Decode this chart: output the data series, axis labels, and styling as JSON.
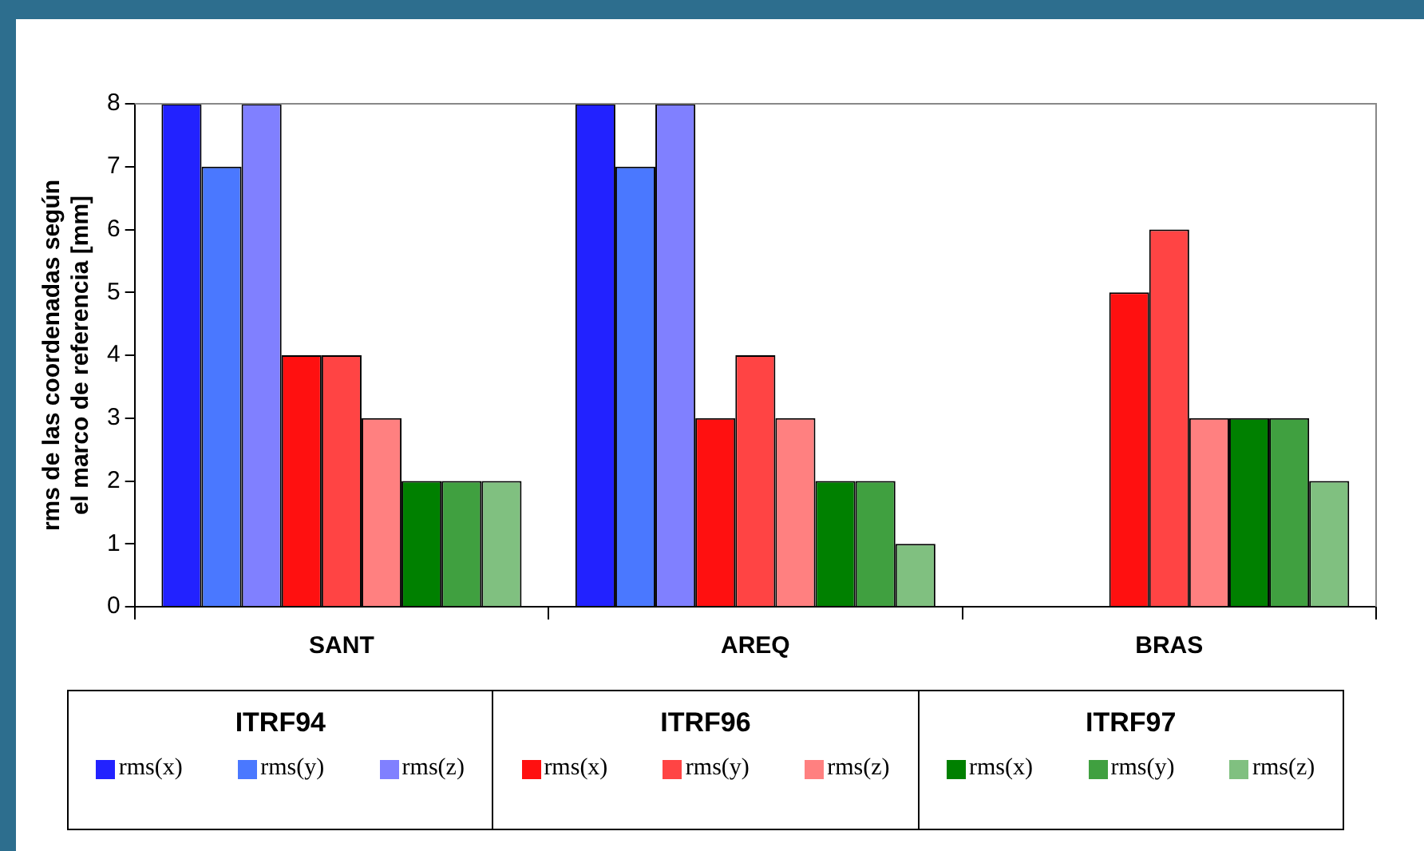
{
  "chart_data": {
    "type": "bar",
    "ylabel": "rms de las coordenadas según\nel marco de referencia [mm]",
    "categories": [
      "SANT",
      "AREQ",
      "BRAS"
    ],
    "series": [
      {
        "name": "rms(x)",
        "color": "#2222ff",
        "values": [
          8,
          8,
          null
        ]
      },
      {
        "name": "rms(y)",
        "color": "#4a78ff",
        "values": [
          7,
          7,
          null
        ]
      },
      {
        "name": "rms(z)",
        "color": "#8080ff",
        "values": [
          8,
          8,
          null
        ]
      },
      {
        "name": "rms(x)",
        "color": "#ff1010",
        "values": [
          4,
          3,
          5
        ]
      },
      {
        "name": "rms(y)",
        "color": "#ff4444",
        "values": [
          4,
          4,
          6
        ]
      },
      {
        "name": "rms(z)",
        "color": "#ff8080",
        "values": [
          3,
          3,
          3
        ]
      },
      {
        "name": "rms(x)",
        "color": "#008000",
        "values": [
          2,
          2,
          3
        ]
      },
      {
        "name": "rms(y)",
        "color": "#40a040",
        "values": [
          2,
          2,
          3
        ]
      },
      {
        "name": "rms(z)",
        "color": "#80c080",
        "values": [
          2,
          1,
          2
        ]
      }
    ],
    "annotations": [
      "ITRF94",
      "ITRF96",
      "ITRF97"
    ],
    "ylim": [
      0,
      8
    ],
    "yticks": [
      0,
      1,
      2,
      3,
      4,
      5,
      6,
      7,
      8
    ],
    "grid": false,
    "legend": "bottom"
  }
}
